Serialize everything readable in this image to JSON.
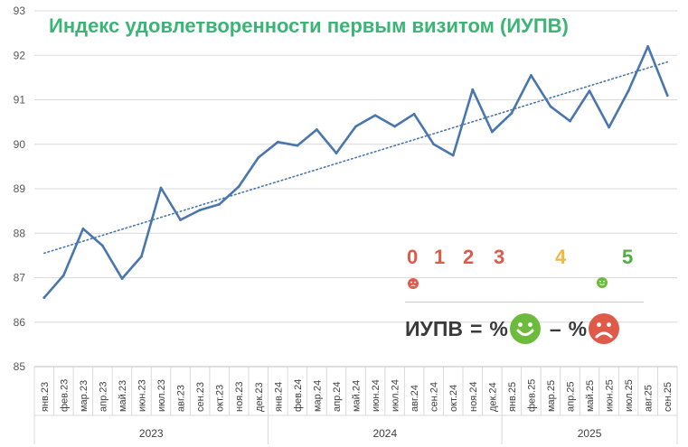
{
  "chart_data": {
    "type": "line",
    "title": "Индекс удовлетворенности первым визитом (ИУПВ)",
    "ylim": [
      85,
      93
    ],
    "yticks": [
      85,
      86,
      87,
      88,
      89,
      90,
      91,
      92,
      93
    ],
    "categories": [
      "янв.23",
      "фев.23",
      "мар.23",
      "апр.23",
      "май.23",
      "июн.23",
      "июл.23",
      "авг.23",
      "сен.23",
      "окт.23",
      "ноя.23",
      "дек.23",
      "янв.24",
      "фев.24",
      "мар.24",
      "апр.24",
      "май.24",
      "июн.24",
      "июл.24",
      "авг.24",
      "сен.24",
      "окт.24",
      "ноя.24",
      "дек.24",
      "янв.25",
      "фев.25",
      "мар.25",
      "апр.25",
      "май.25",
      "июн.25",
      "июл.25",
      "авг.25",
      "сен.25"
    ],
    "year_groups": [
      {
        "label": "2023",
        "count": 12
      },
      {
        "label": "2024",
        "count": 12
      },
      {
        "label": "2025",
        "count": 9
      }
    ],
    "series": [
      {
        "values": [
          86.55,
          87.05,
          88.1,
          87.72,
          86.98,
          87.48,
          89.02,
          88.3,
          88.52,
          88.65,
          89.05,
          89.7,
          90.05,
          89.97,
          90.33,
          89.8,
          90.4,
          90.65,
          90.4,
          90.68,
          90.0,
          89.75,
          91.23,
          90.28,
          90.7,
          91.55,
          90.85,
          90.52,
          91.2,
          90.38,
          91.2,
          92.2,
          91.1
        ],
        "color": "#4a76ae",
        "style": "solid"
      }
    ],
    "trendline": {
      "start": 87.55,
      "end": 91.85,
      "color": "#4a76ae",
      "style": "dotted"
    },
    "grid": true
  },
  "legend": {
    "scores": [
      {
        "label": "0",
        "color": "#e05a4a"
      },
      {
        "label": "1",
        "color": "#e05a4a"
      },
      {
        "label": "2",
        "color": "#e05a4a"
      },
      {
        "label": "3",
        "color": "#e05a4a"
      },
      {
        "label": "4",
        "color": "#f2b644"
      },
      {
        "label": "5",
        "color": "#4fae3f"
      }
    ],
    "formula_name": "ИУПВ",
    "formula_eq": "=",
    "formula_pct": "%",
    "formula_minus": "–"
  }
}
